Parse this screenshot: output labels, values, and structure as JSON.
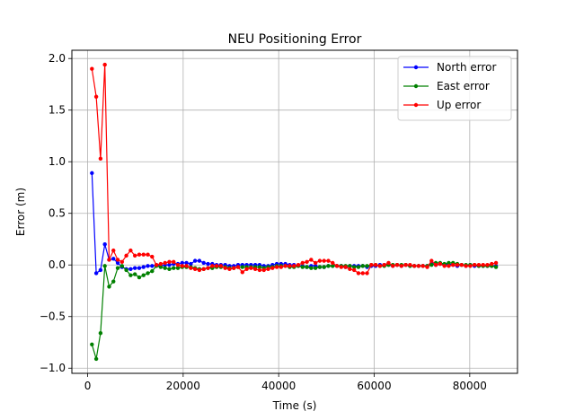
{
  "chart_data": {
    "type": "line",
    "title": "NEU Positioning Error",
    "xlabel": "Time (s)",
    "ylabel": "Error (m)",
    "xlim": [
      -3300,
      90000
    ],
    "ylim": [
      -1.05,
      2.08
    ],
    "xticks": [
      0,
      20000,
      40000,
      60000,
      80000
    ],
    "xtick_labels": [
      "0",
      "20000",
      "40000",
      "60000",
      "80000"
    ],
    "yticks": [
      -1.0,
      -0.5,
      0.0,
      0.5,
      1.0,
      1.5,
      2.0
    ],
    "ytick_labels": [
      "−1.0",
      "−0.5",
      "0.0",
      "0.5",
      "1.0",
      "1.5",
      "2.0"
    ],
    "grid": true,
    "legend_position": "top-right",
    "series": [
      {
        "name": "North error",
        "color": "#0000ff",
        "x": [
          900,
          1800,
          2700,
          3600,
          4500,
          5400,
          6300,
          7200,
          8100,
          9000,
          9900,
          10800,
          11700,
          12600,
          13500,
          14400,
          15300,
          16200,
          17100,
          18000,
          18900,
          19800,
          20700,
          21600,
          22500,
          23400,
          24300,
          25200,
          26100,
          27000,
          27900,
          28800,
          29700,
          30600,
          31500,
          32400,
          33300,
          34200,
          35100,
          36000,
          36900,
          37800,
          38700,
          39600,
          40500,
          41400,
          42300,
          43200,
          44100,
          45000,
          45900,
          46800,
          47700,
          48600,
          49500,
          50400,
          51300,
          52200,
          53100,
          54000,
          54900,
          55800,
          56700,
          57600,
          58500,
          59400,
          60300,
          61200,
          62100,
          63000,
          63900,
          64800,
          65700,
          66600,
          67500,
          68400,
          69300,
          70200,
          71100,
          72000,
          72900,
          73800,
          74700,
          75600,
          76500,
          77400,
          78300,
          79200,
          80100,
          81000,
          81900,
          82800,
          83700,
          84600,
          85500
        ],
        "values": [
          0.89,
          -0.08,
          -0.05,
          0.2,
          0.05,
          0.06,
          0.02,
          -0.02,
          -0.04,
          -0.04,
          -0.03,
          -0.03,
          -0.02,
          -0.01,
          -0.01,
          0.0,
          -0.01,
          0.0,
          0.0,
          0.01,
          0.01,
          0.02,
          0.02,
          0.01,
          0.04,
          0.04,
          0.02,
          0.01,
          0.01,
          0.0,
          0.0,
          0.0,
          -0.01,
          -0.01,
          0.0,
          0.0,
          0.0,
          0.0,
          0.0,
          0.0,
          -0.01,
          -0.01,
          0.0,
          0.01,
          0.01,
          0.01,
          0.0,
          0.0,
          -0.01,
          -0.01,
          -0.02,
          -0.01,
          -0.01,
          -0.02,
          -0.02,
          -0.01,
          -0.01,
          -0.01,
          -0.01,
          -0.02,
          -0.01,
          -0.01,
          -0.01,
          -0.01,
          -0.02,
          -0.01,
          -0.01,
          0.0,
          0.0,
          0.0,
          -0.01,
          0.0,
          -0.01,
          0.0,
          -0.01,
          -0.01,
          -0.01,
          -0.01,
          -0.01,
          0.01,
          0.0,
          0.01,
          0.0,
          0.01,
          0.0,
          -0.01,
          0.0,
          -0.01,
          0.0,
          -0.01,
          -0.01,
          -0.01,
          -0.01,
          -0.01,
          -0.01
        ]
      },
      {
        "name": "East error",
        "color": "#008000",
        "x": [
          900,
          1800,
          2700,
          3600,
          4500,
          5400,
          6300,
          7200,
          8100,
          9000,
          9900,
          10800,
          11700,
          12600,
          13500,
          14400,
          15300,
          16200,
          17100,
          18000,
          18900,
          19800,
          20700,
          21600,
          22500,
          23400,
          24300,
          25200,
          26100,
          27000,
          27900,
          28800,
          29700,
          30600,
          31500,
          32400,
          33300,
          34200,
          35100,
          36000,
          36900,
          37800,
          38700,
          39600,
          40500,
          41400,
          42300,
          43200,
          44100,
          45000,
          45900,
          46800,
          47700,
          48600,
          49500,
          50400,
          51300,
          52200,
          53100,
          54000,
          54900,
          55800,
          56700,
          57600,
          58500,
          59400,
          60300,
          61200,
          62100,
          63000,
          63900,
          64800,
          65700,
          66600,
          67500,
          68400,
          69300,
          70200,
          71100,
          72000,
          72900,
          73800,
          74700,
          75600,
          76500,
          77400,
          78300,
          79200,
          80100,
          81000,
          81900,
          82800,
          83700,
          84600,
          85500
        ],
        "values": [
          -0.77,
          -0.91,
          -0.66,
          -0.01,
          -0.21,
          -0.16,
          -0.03,
          -0.01,
          -0.05,
          -0.1,
          -0.09,
          -0.12,
          -0.1,
          -0.08,
          -0.06,
          -0.01,
          -0.02,
          -0.03,
          -0.04,
          -0.03,
          -0.03,
          -0.02,
          -0.02,
          -0.02,
          -0.03,
          -0.04,
          -0.04,
          -0.03,
          -0.03,
          -0.02,
          -0.02,
          -0.02,
          -0.03,
          -0.03,
          -0.02,
          -0.02,
          -0.02,
          -0.02,
          -0.02,
          -0.02,
          -0.03,
          -0.02,
          -0.02,
          -0.01,
          -0.01,
          -0.01,
          -0.02,
          -0.02,
          -0.01,
          -0.02,
          -0.02,
          -0.03,
          -0.03,
          -0.02,
          -0.02,
          -0.01,
          -0.01,
          -0.01,
          -0.01,
          -0.01,
          -0.01,
          -0.02,
          -0.02,
          -0.01,
          -0.01,
          0.0,
          0.0,
          -0.01,
          -0.01,
          0.0,
          0.0,
          0.0,
          0.0,
          0.0,
          -0.01,
          -0.01,
          -0.01,
          -0.01,
          -0.01,
          0.0,
          0.02,
          0.02,
          0.01,
          0.02,
          0.02,
          0.01,
          0.0,
          0.0,
          0.0,
          0.0,
          -0.01,
          -0.01,
          -0.01,
          -0.01,
          -0.02
        ]
      },
      {
        "name": "Up error",
        "color": "#ff0000",
        "x": [
          900,
          1800,
          2700,
          3600,
          4500,
          5400,
          6300,
          7200,
          8100,
          9000,
          9900,
          10800,
          11700,
          12600,
          13500,
          14400,
          15300,
          16200,
          17100,
          18000,
          18900,
          19800,
          20700,
          21600,
          22500,
          23400,
          24300,
          25200,
          26100,
          27000,
          27900,
          28800,
          29700,
          30600,
          31500,
          32400,
          33300,
          34200,
          35100,
          36000,
          36900,
          37800,
          38700,
          39600,
          40500,
          41400,
          42300,
          43200,
          44100,
          45000,
          45900,
          46800,
          47700,
          48600,
          49500,
          50400,
          51300,
          52200,
          53100,
          54000,
          54900,
          55800,
          56700,
          57600,
          58500,
          59400,
          60300,
          61200,
          62100,
          63000,
          63900,
          64800,
          65700,
          66600,
          67500,
          68400,
          69300,
          70200,
          71100,
          72000,
          72900,
          73800,
          74700,
          75600,
          76500,
          77400,
          78300,
          79200,
          80100,
          81000,
          81900,
          82800,
          83700,
          84600,
          85500
        ],
        "values": [
          1.9,
          1.63,
          1.03,
          1.94,
          0.05,
          0.14,
          0.05,
          0.03,
          0.09,
          0.14,
          0.09,
          0.1,
          0.1,
          0.1,
          0.08,
          0.0,
          0.01,
          0.02,
          0.03,
          0.03,
          0.0,
          -0.01,
          -0.01,
          -0.03,
          -0.04,
          -0.05,
          -0.04,
          -0.03,
          -0.01,
          -0.01,
          -0.01,
          -0.03,
          -0.04,
          -0.03,
          -0.02,
          -0.07,
          -0.04,
          -0.03,
          -0.04,
          -0.05,
          -0.05,
          -0.04,
          -0.03,
          -0.02,
          -0.02,
          -0.01,
          -0.01,
          -0.01,
          0.0,
          0.02,
          0.03,
          0.05,
          0.02,
          0.04,
          0.04,
          0.04,
          0.02,
          -0.01,
          -0.02,
          -0.02,
          -0.04,
          -0.05,
          -0.08,
          -0.08,
          -0.08,
          0.0,
          0.0,
          -0.01,
          0.0,
          0.02,
          -0.01,
          0.0,
          -0.01,
          0.0,
          0.0,
          -0.01,
          -0.01,
          -0.01,
          -0.02,
          0.04,
          0.0,
          0.01,
          -0.01,
          -0.01,
          0.0,
          0.0,
          0.0,
          -0.01,
          -0.01,
          0.0,
          0.0,
          0.0,
          0.0,
          0.01,
          0.02
        ]
      }
    ]
  }
}
